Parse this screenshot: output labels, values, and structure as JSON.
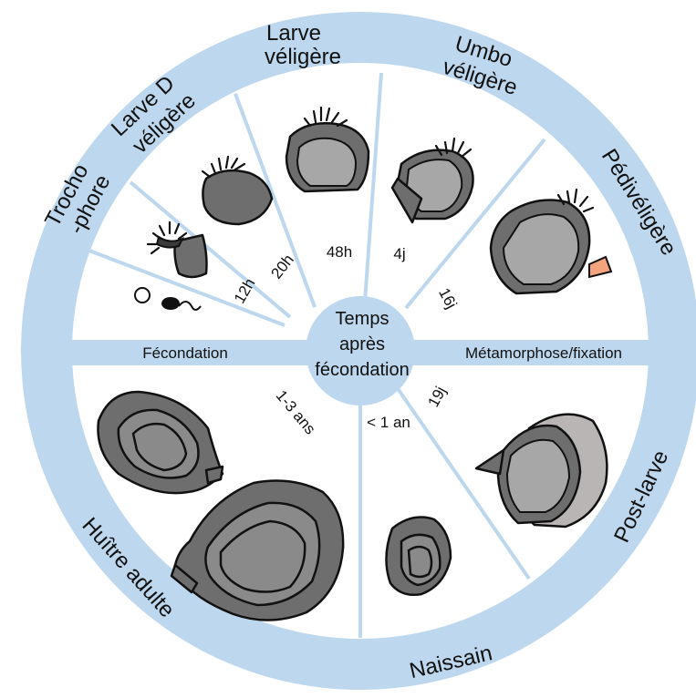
{
  "diagram": {
    "center": {
      "line1": "Temps",
      "line2": "après",
      "line3": "fécondation"
    },
    "stages": {
      "trochophore": {
        "line1": "Trocho",
        "line2": "-phore"
      },
      "larve_d": {
        "line1": "Larve D",
        "line2": "véligère"
      },
      "larve": {
        "line1": "Larve",
        "line2": "véligère"
      },
      "umbo": {
        "line1": "Umbo",
        "line2": "véligère"
      },
      "pediveligere": "Pédivéligère",
      "post_larve": "Post-larve",
      "naissain": "Naissain",
      "huitre_adulte": "Huître adulte"
    },
    "events": {
      "fecondation": "Fécondation",
      "metamorphose": "Métamorphose/fixation"
    },
    "times": {
      "t12h": "12h",
      "t20h": "20h",
      "t48h": "48h",
      "t4j": "4j",
      "t16j": "16j",
      "t19j": "19j",
      "t1an": "< 1 an",
      "t13ans": "1-3 ans"
    },
    "colors": {
      "ring": "#bdd7ee",
      "shell_dark": "#6e6e6e",
      "shell_light": "#a7a7a7",
      "foot": "#f4a47c"
    }
  }
}
